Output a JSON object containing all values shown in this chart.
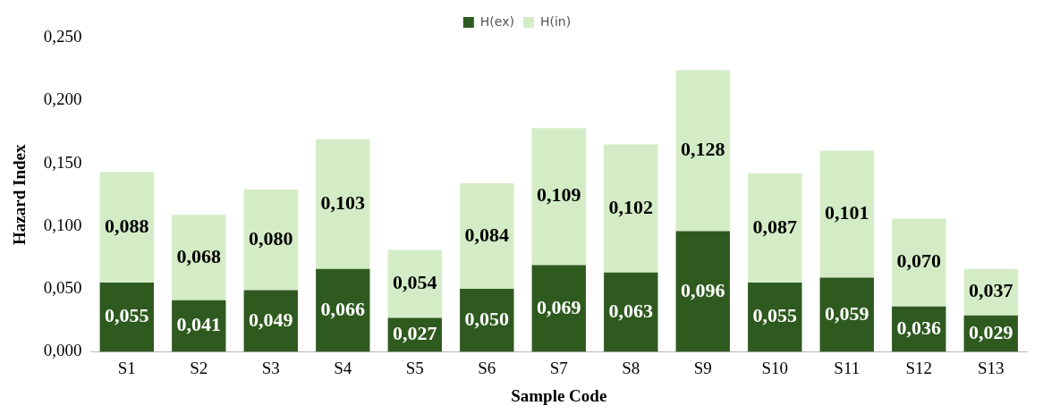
{
  "chart_data": {
    "type": "bar",
    "stacked": true,
    "xlabel": "Sample Code",
    "ylabel": "Hazard Index",
    "categories": [
      "S1",
      "S2",
      "S3",
      "S4",
      "S5",
      "S6",
      "S7",
      "S8",
      "S9",
      "S10",
      "S11",
      "S12",
      "S13"
    ],
    "series": [
      {
        "name": "H(ex)",
        "color": "#2f5a1f",
        "values": [
          0.055,
          0.041,
          0.049,
          0.066,
          0.027,
          0.05,
          0.069,
          0.063,
          0.096,
          0.055,
          0.059,
          0.036,
          0.029
        ],
        "value_labels": [
          "0,055",
          "0,041",
          "0,049",
          "0,066",
          "0,027",
          "0,050",
          "0,069",
          "0,063",
          "0,096",
          "0,055",
          "0,059",
          "0,036",
          "0,029"
        ]
      },
      {
        "name": "H(in)",
        "color": "#d3ecc6",
        "values": [
          0.088,
          0.068,
          0.08,
          0.103,
          0.054,
          0.084,
          0.109,
          0.102,
          0.128,
          0.087,
          0.101,
          0.07,
          0.037
        ],
        "value_labels": [
          "0,088",
          "0,068",
          "0,080",
          "0,103",
          "0,054",
          "0,084",
          "0,109",
          "0,102",
          "0,128",
          "0,087",
          "0,101",
          "0,070",
          "0,037"
        ]
      }
    ],
    "ylim": [
      0,
      0.25
    ],
    "yticks": [
      {
        "value": 0,
        "label": "0,000"
      },
      {
        "value": 0.05,
        "label": "0,050"
      },
      {
        "value": 0.1,
        "label": "0,100"
      },
      {
        "value": 0.15,
        "label": "0,150"
      },
      {
        "value": 0.2,
        "label": "0,200"
      },
      {
        "value": 0.25,
        "label": "0,250"
      }
    ],
    "grid": false,
    "legend": "top"
  }
}
